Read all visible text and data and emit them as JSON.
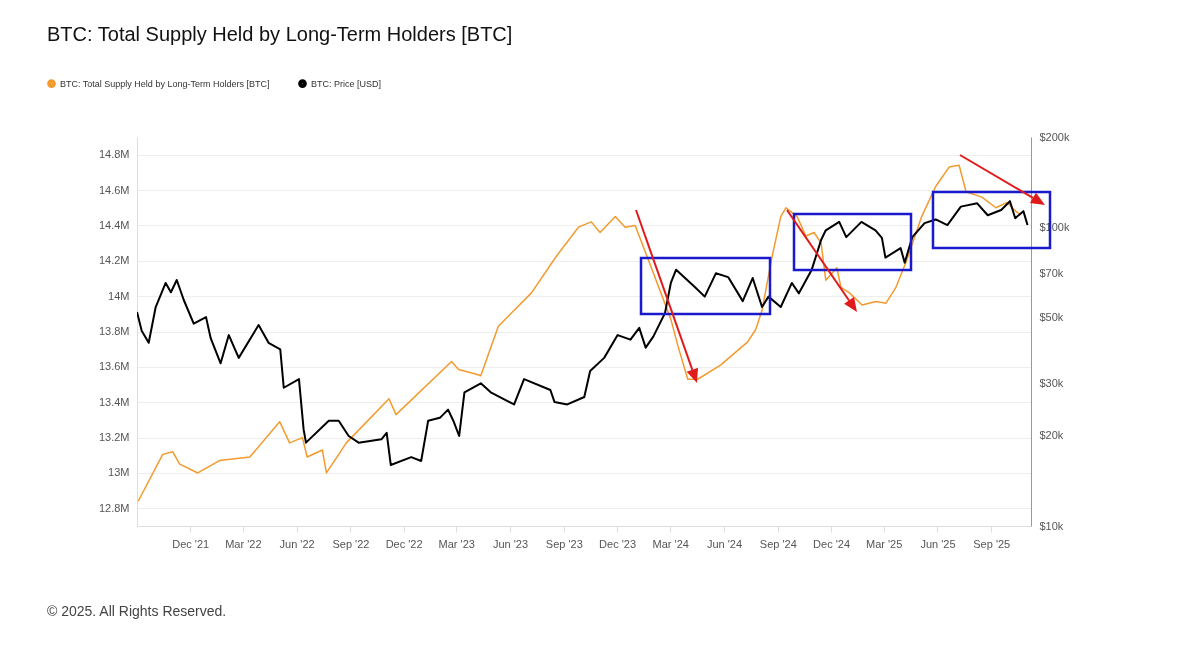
{
  "chart_data": {
    "type": "line",
    "title": "BTC: Total Supply Held by Long-Term Holders [BTC]",
    "annotations": [
      "© 2025. All Rights Reserved."
    ],
    "legend": "top left",
    "grid": "y",
    "log": "y2",
    "xlim": [
      "2021-09-01",
      "2025-11-08"
    ],
    "xticks": [
      {
        "value": "2021-12-01",
        "label": "Dec '21"
      },
      {
        "value": "2022-03-01",
        "label": "Mar '22"
      },
      {
        "value": "2022-06-01",
        "label": "Jun '22"
      },
      {
        "value": "2022-09-01",
        "label": "Sep '22"
      },
      {
        "value": "2022-12-01",
        "label": "Dec '22"
      },
      {
        "value": "2023-03-01",
        "label": "Mar '23"
      },
      {
        "value": "2023-06-01",
        "label": "Jun '23"
      },
      {
        "value": "2023-09-01",
        "label": "Sep '23"
      },
      {
        "value": "2023-12-01",
        "label": "Dec '23"
      },
      {
        "value": "2024-03-01",
        "label": "Mar '24"
      },
      {
        "value": "2024-06-01",
        "label": "Jun '24"
      },
      {
        "value": "2024-09-01",
        "label": "Sep '24"
      },
      {
        "value": "2024-12-01",
        "label": "Dec '24"
      },
      {
        "value": "2025-03-01",
        "label": "Mar '25"
      },
      {
        "value": "2025-06-01",
        "label": "Jun '25"
      },
      {
        "value": "2025-09-01",
        "label": "Sep '25"
      }
    ],
    "ylim": [
      12700000,
      14900000
    ],
    "yticks": [
      {
        "value": 12800000,
        "label": "12.8M"
      },
      {
        "value": 13000000,
        "label": "13M"
      },
      {
        "value": 13200000,
        "label": "13.2M"
      },
      {
        "value": 13400000,
        "label": "13.4M"
      },
      {
        "value": 13600000,
        "label": "13.6M"
      },
      {
        "value": 13800000,
        "label": "13.8M"
      },
      {
        "value": 14000000,
        "label": "14M"
      },
      {
        "value": 14200000,
        "label": "14.2M"
      },
      {
        "value": 14400000,
        "label": "14.4M"
      },
      {
        "value": 14600000,
        "label": "14.6M"
      },
      {
        "value": 14800000,
        "label": "14.8M"
      }
    ],
    "y2lim": [
      10000,
      200000
    ],
    "y2ticks": [
      {
        "value": 10000,
        "label": "$10k"
      },
      {
        "value": 20000,
        "label": "$20k"
      },
      {
        "value": 30000,
        "label": "$30k"
      },
      {
        "value": 50000,
        "label": "$50k"
      },
      {
        "value": 70000,
        "label": "$70k"
      },
      {
        "value": 100000,
        "label": "$100k"
      },
      {
        "value": 200000,
        "label": "$200k"
      }
    ],
    "series": [
      {
        "name": "BTC: Total Supply Held by Long-Term Holders [BTC]",
        "color": "#f39a2e",
        "x": [
          "2021-09-03",
          "2021-10-15",
          "2021-11-01",
          "2021-11-13",
          "2021-12-14",
          "2022-01-20",
          "2022-03-13",
          "2022-05-03",
          "2022-05-20",
          "2022-06-11",
          "2022-06-19",
          "2022-07-15",
          "2022-07-22",
          "2022-08-25",
          "2022-11-06",
          "2022-11-18",
          "2023-02-21",
          "2023-03-05",
          "2023-04-03",
          "2023-04-12",
          "2023-05-12",
          "2023-07-08",
          "2023-08-18",
          "2023-09-26",
          "2023-10-18",
          "2023-11-02",
          "2023-11-28",
          "2023-12-15",
          "2024-01-01",
          "2024-01-23",
          "2024-03-02",
          "2024-03-14",
          "2024-03-31",
          "2024-04-17",
          "2024-05-26",
          "2024-07-11",
          "2024-07-25",
          "2024-08-05",
          "2024-08-22",
          "2024-09-06",
          "2024-09-15",
          "2024-10-04",
          "2024-10-19",
          "2024-11-02",
          "2024-11-14",
          "2024-11-22",
          "2024-12-11",
          "2024-12-18",
          "2025-01-01",
          "2025-01-23",
          "2025-02-16",
          "2025-03-05",
          "2025-03-22",
          "2025-04-08",
          "2025-05-05",
          "2025-05-29",
          "2025-06-21",
          "2025-07-08",
          "2025-07-20",
          "2025-08-16",
          "2025-09-09",
          "2025-09-28",
          "2025-10-13",
          "2025-10-22"
        ],
        "values": [
          12840000,
          13105000,
          13120000,
          13050000,
          13000000,
          13070000,
          13090000,
          13290000,
          13170000,
          13200000,
          13090000,
          13130000,
          13000000,
          13170000,
          13420000,
          13330000,
          13630000,
          13585000,
          13560000,
          13550000,
          13830000,
          14020000,
          14220000,
          14390000,
          14420000,
          14360000,
          14450000,
          14390000,
          14400000,
          14210000,
          13870000,
          13720000,
          13530000,
          13530000,
          13610000,
          13740000,
          13810000,
          13920000,
          14220000,
          14450000,
          14500000,
          14450000,
          14340000,
          14360000,
          14300000,
          14090000,
          14160000,
          14050000,
          14020000,
          13950000,
          13970000,
          13960000,
          14050000,
          14190000,
          14450000,
          14620000,
          14730000,
          14740000,
          14590000,
          14560000,
          14500000,
          14530000,
          14480000,
          14460000
        ]
      },
      {
        "name": "BTC: Price [USD]",
        "color": "#000000",
        "axis": "y2",
        "x": [
          "2021-09-01",
          "2021-09-09",
          "2021-09-21",
          "2021-10-03",
          "2021-10-20",
          "2021-10-29",
          "2021-11-08",
          "2021-11-20",
          "2021-12-07",
          "2021-12-28",
          "2022-01-05",
          "2022-01-22",
          "2022-02-05",
          "2022-02-22",
          "2022-03-28",
          "2022-04-14",
          "2022-05-04",
          "2022-05-10",
          "2022-06-05",
          "2022-06-13",
          "2022-06-17",
          "2022-07-26",
          "2022-08-12",
          "2022-08-29",
          "2022-09-15",
          "2022-10-24",
          "2022-11-02",
          "2022-11-09",
          "2022-12-14",
          "2022-12-31",
          "2023-01-12",
          "2023-02-01",
          "2023-02-15",
          "2023-02-24",
          "2023-03-06",
          "2023-03-15",
          "2023-04-12",
          "2023-04-29",
          "2023-06-08",
          "2023-06-25",
          "2023-08-09",
          "2023-08-16",
          "2023-09-07",
          "2023-10-06",
          "2023-10-16",
          "2023-11-09",
          "2023-12-02",
          "2023-12-24",
          "2024-01-08",
          "2024-01-19",
          "2024-02-01",
          "2024-02-21",
          "2024-03-02",
          "2024-03-11",
          "2024-04-12",
          "2024-04-29",
          "2024-05-18",
          "2024-06-08",
          "2024-07-03",
          "2024-07-20",
          "2024-08-05",
          "2024-08-16",
          "2024-09-06",
          "2024-09-25",
          "2024-10-07",
          "2024-10-29",
          "2024-11-14",
          "2024-11-22",
          "2024-12-15",
          "2024-12-27",
          "2025-01-22",
          "2025-02-15",
          "2025-02-26",
          "2025-03-04",
          "2025-03-30",
          "2025-04-06",
          "2025-04-19",
          "2025-05-10",
          "2025-05-29",
          "2025-06-18",
          "2025-07-11",
          "2025-08-08",
          "2025-08-26",
          "2025-09-18",
          "2025-10-03",
          "2025-10-12",
          "2025-10-26",
          "2025-11-02"
        ],
        "values": [
          52000,
          45000,
          41000,
          54000,
          65000,
          60500,
          66500,
          57000,
          47500,
          50000,
          42500,
          35000,
          43500,
          36500,
          47000,
          41000,
          39000,
          29000,
          31000,
          21000,
          19000,
          22500,
          22500,
          20000,
          19000,
          19500,
          20500,
          16000,
          17000,
          16500,
          22500,
          23000,
          24500,
          22500,
          20000,
          28000,
          30000,
          28000,
          25500,
          31000,
          28500,
          26000,
          25500,
          27000,
          33000,
          36500,
          43500,
          42000,
          46000,
          39500,
          43000,
          51500,
          65000,
          72000,
          63000,
          58500,
          70000,
          68000,
          56500,
          67500,
          54000,
          58500,
          54000,
          65000,
          60000,
          72000,
          90500,
          97500,
          104000,
          92500,
          104000,
          97500,
          92000,
          79000,
          85000,
          76000,
          92500,
          103000,
          106000,
          101500,
          117000,
          120000,
          109500,
          114000,
          122000,
          107000,
          113000,
          101500
        ]
      }
    ]
  }
}
